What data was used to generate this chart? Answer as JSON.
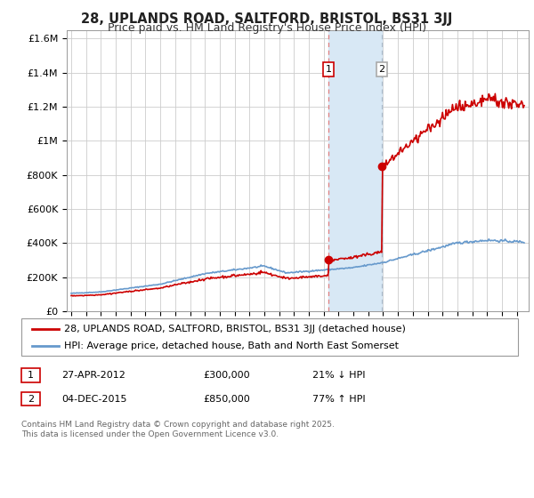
{
  "title": "28, UPLANDS ROAD, SALTFORD, BRISTOL, BS31 3JJ",
  "subtitle": "Price paid vs. HM Land Registry's House Price Index (HPI)",
  "ylim": [
    0,
    1650000
  ],
  "yticks": [
    0,
    200000,
    400000,
    600000,
    800000,
    1000000,
    1200000,
    1400000,
    1600000
  ],
  "ytick_labels": [
    "£0",
    "£200K",
    "£400K",
    "£600K",
    "£800K",
    "£1M",
    "£1.2M",
    "£1.4M",
    "£1.6M"
  ],
  "sale1": {
    "date_num": 2012.32,
    "price": 300000,
    "label": "1",
    "date_str": "27-APR-2012",
    "price_str": "£300,000",
    "pct": "21% ↓ HPI"
  },
  "sale2": {
    "date_num": 2015.92,
    "price": 850000,
    "label": "2",
    "date_str": "04-DEC-2015",
    "price_str": "£850,000",
    "pct": "77% ↑ HPI"
  },
  "property_color": "#cc0000",
  "hpi_color": "#6699cc",
  "span_color": "#d8e8f5",
  "vline1_color": "#e08080",
  "vline2_color": "#aabbcc",
  "legend_label1": "28, UPLANDS ROAD, SALTFORD, BRISTOL, BS31 3JJ (detached house)",
  "legend_label2": "HPI: Average price, detached house, Bath and North East Somerset",
  "footnote": "Contains HM Land Registry data © Crown copyright and database right 2025.\nThis data is licensed under the Open Government Licence v3.0.",
  "background_color": "#ffffff",
  "grid_color": "#cccccc",
  "title_fontsize": 10.5,
  "subtitle_fontsize": 9,
  "tick_fontsize": 8,
  "legend_fontsize": 8,
  "info_fontsize": 8,
  "footnote_fontsize": 6.5
}
